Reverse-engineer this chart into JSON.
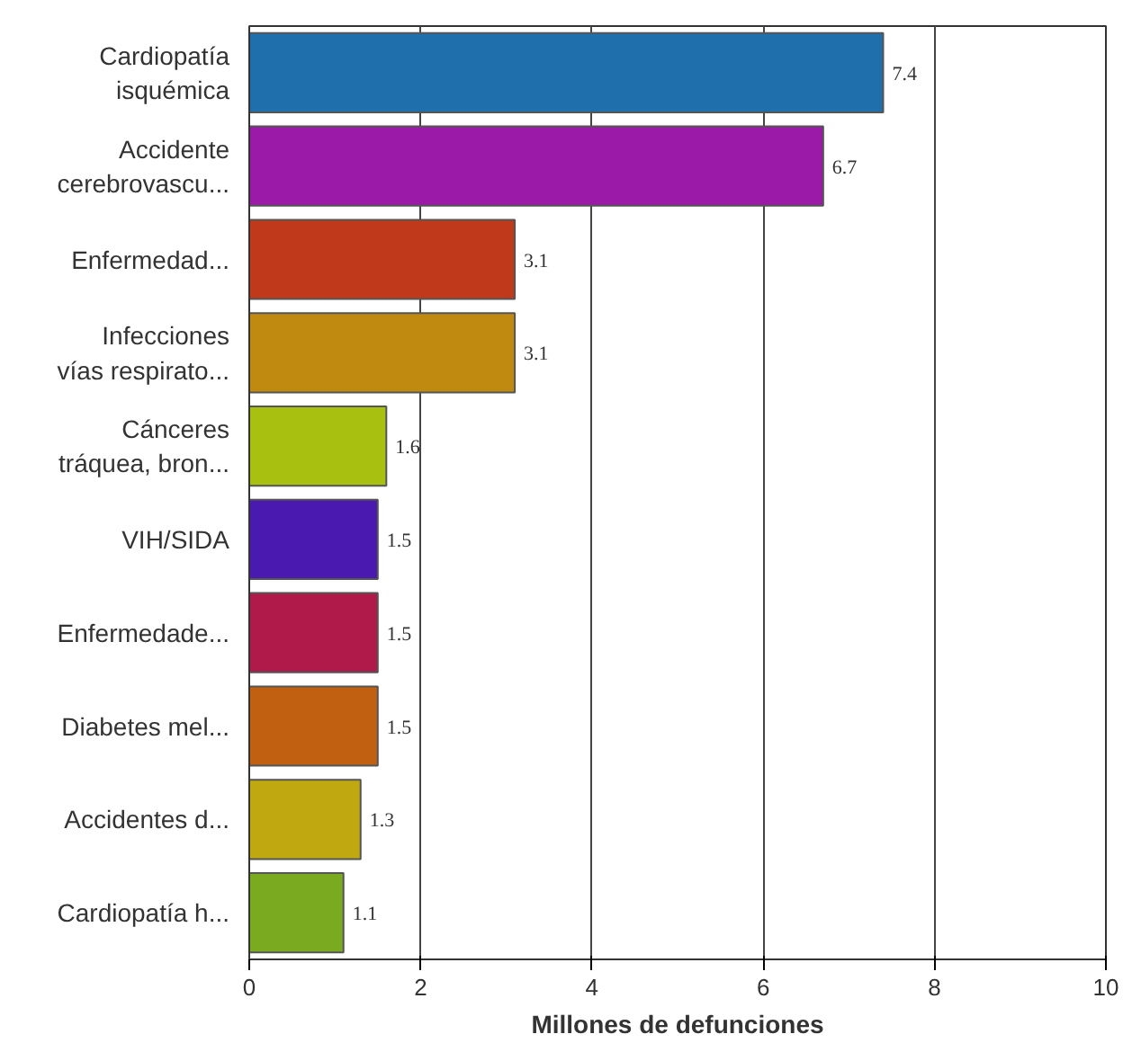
{
  "chart_data": {
    "type": "bar",
    "orientation": "horizontal",
    "xlabel": "Millones de defunciones",
    "categories": [
      "Cardiopatía\nisquémica",
      "Accidente\ncerebrovascu...",
      "Enfermedad...",
      "Infecciones\nvías respirato...",
      "Cánceres\ntráquea, bron...",
      "VIH/SIDA",
      "Enfermedade...",
      "Diabetes mel...",
      "Accidentes d...",
      "Cardiopatía h..."
    ],
    "values": [
      7.4,
      6.7,
      3.1,
      3.1,
      1.6,
      1.5,
      1.5,
      1.5,
      1.3,
      1.1
    ],
    "colors": [
      "#1f6fad",
      "#9b1aa8",
      "#c0391a",
      "#c08a10",
      "#a8c010",
      "#4a1ab0",
      "#b01a4a",
      "#c06010",
      "#c0a810",
      "#7aaa20"
    ],
    "xlim": [
      0,
      10
    ],
    "xticks": [
      0,
      2,
      4,
      6,
      8,
      10
    ],
    "grid": "x",
    "data_labels": true
  }
}
